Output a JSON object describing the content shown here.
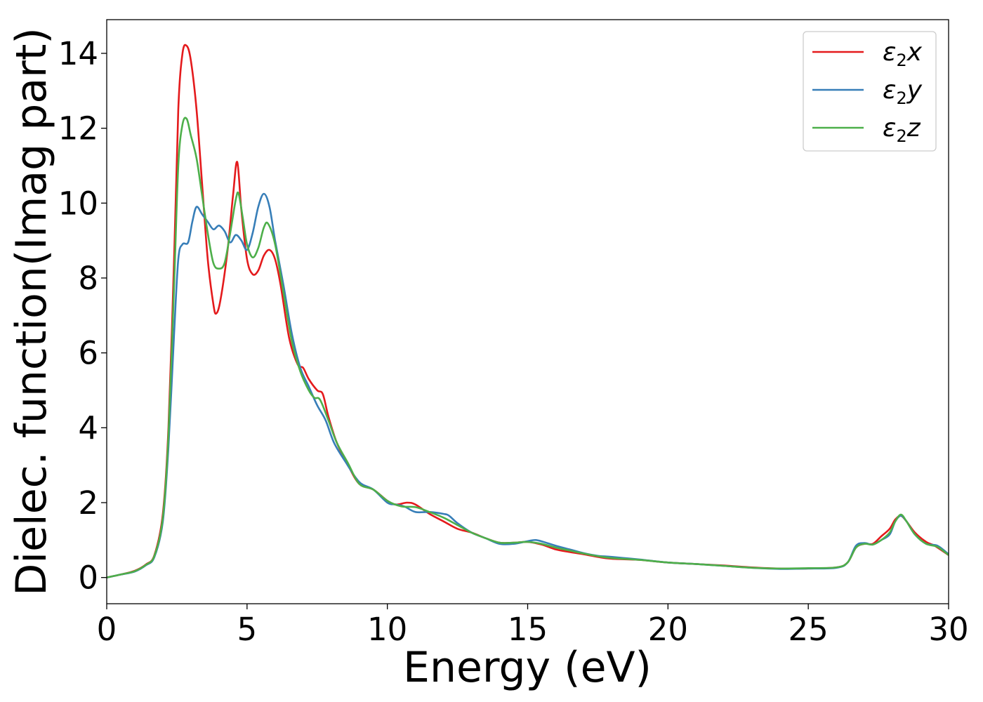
{
  "chart_data": {
    "type": "line",
    "title": "",
    "xlabel": "Energy (eV)",
    "ylabel": "Dielec. function(Imag part)",
    "xlim": [
      0,
      30
    ],
    "ylim": [
      -0.7,
      14.9
    ],
    "xticks": [
      0,
      5,
      10,
      15,
      20,
      25,
      30
    ],
    "yticks": [
      0,
      2,
      4,
      6,
      8,
      10,
      12,
      14
    ],
    "grid": false,
    "legend_position": "top-right",
    "series": [
      {
        "name": "ε2x",
        "color": "#e41a1c",
        "points": [
          [
            0,
            0
          ],
          [
            0.5,
            0.08
          ],
          [
            1.0,
            0.18
          ],
          [
            1.4,
            0.35
          ],
          [
            1.7,
            0.6
          ],
          [
            2.0,
            1.7
          ],
          [
            2.2,
            4.0
          ],
          [
            2.4,
            8.5
          ],
          [
            2.55,
            12.5
          ],
          [
            2.7,
            14.0
          ],
          [
            2.85,
            14.2
          ],
          [
            3.0,
            13.8
          ],
          [
            3.2,
            12.5
          ],
          [
            3.4,
            10.5
          ],
          [
            3.6,
            8.5
          ],
          [
            3.8,
            7.3
          ],
          [
            3.9,
            7.05
          ],
          [
            4.05,
            7.4
          ],
          [
            4.3,
            8.7
          ],
          [
            4.5,
            10.2
          ],
          [
            4.65,
            11.1
          ],
          [
            4.8,
            9.8
          ],
          [
            5.0,
            8.5
          ],
          [
            5.2,
            8.1
          ],
          [
            5.4,
            8.2
          ],
          [
            5.6,
            8.6
          ],
          [
            5.8,
            8.75
          ],
          [
            6.0,
            8.5
          ],
          [
            6.2,
            7.8
          ],
          [
            6.5,
            6.4
          ],
          [
            6.8,
            5.7
          ],
          [
            7.0,
            5.6
          ],
          [
            7.2,
            5.3
          ],
          [
            7.5,
            5.0
          ],
          [
            7.7,
            4.9
          ],
          [
            7.9,
            4.3
          ],
          [
            8.2,
            3.6
          ],
          [
            8.6,
            3.0
          ],
          [
            9.0,
            2.5
          ],
          [
            9.5,
            2.35
          ],
          [
            10.0,
            2.05
          ],
          [
            10.3,
            1.95
          ],
          [
            10.7,
            2.0
          ],
          [
            11.0,
            1.95
          ],
          [
            11.5,
            1.7
          ],
          [
            12.0,
            1.5
          ],
          [
            12.5,
            1.3
          ],
          [
            13.0,
            1.2
          ],
          [
            13.5,
            1.05
          ],
          [
            14.0,
            0.93
          ],
          [
            14.5,
            0.93
          ],
          [
            15.0,
            0.95
          ],
          [
            15.5,
            0.88
          ],
          [
            16.0,
            0.75
          ],
          [
            16.5,
            0.68
          ],
          [
            17.0,
            0.62
          ],
          [
            17.5,
            0.55
          ],
          [
            18.0,
            0.5
          ],
          [
            19.0,
            0.47
          ],
          [
            20.0,
            0.4
          ],
          [
            21.0,
            0.36
          ],
          [
            22.0,
            0.32
          ],
          [
            23.0,
            0.27
          ],
          [
            24.0,
            0.24
          ],
          [
            25.0,
            0.24
          ],
          [
            26.0,
            0.27
          ],
          [
            26.4,
            0.4
          ],
          [
            26.7,
            0.8
          ],
          [
            27.0,
            0.9
          ],
          [
            27.3,
            0.9
          ],
          [
            27.6,
            1.1
          ],
          [
            27.9,
            1.3
          ],
          [
            28.1,
            1.55
          ],
          [
            28.3,
            1.65
          ],
          [
            28.5,
            1.5
          ],
          [
            28.8,
            1.2
          ],
          [
            29.2,
            0.95
          ],
          [
            29.5,
            0.85
          ],
          [
            30.0,
            0.6
          ]
        ]
      },
      {
        "name": "ε2y",
        "color": "#377eb8",
        "points": [
          [
            0,
            0
          ],
          [
            0.5,
            0.08
          ],
          [
            1.0,
            0.16
          ],
          [
            1.4,
            0.33
          ],
          [
            1.7,
            0.55
          ],
          [
            2.0,
            1.5
          ],
          [
            2.2,
            3.5
          ],
          [
            2.4,
            6.5
          ],
          [
            2.55,
            8.5
          ],
          [
            2.7,
            8.9
          ],
          [
            2.9,
            8.95
          ],
          [
            3.05,
            9.5
          ],
          [
            3.2,
            9.9
          ],
          [
            3.4,
            9.7
          ],
          [
            3.6,
            9.5
          ],
          [
            3.8,
            9.3
          ],
          [
            4.0,
            9.4
          ],
          [
            4.2,
            9.25
          ],
          [
            4.4,
            8.95
          ],
          [
            4.6,
            9.15
          ],
          [
            4.8,
            9.0
          ],
          [
            5.0,
            8.75
          ],
          [
            5.2,
            9.2
          ],
          [
            5.4,
            9.9
          ],
          [
            5.6,
            10.25
          ],
          [
            5.8,
            9.9
          ],
          [
            6.0,
            9.0
          ],
          [
            6.3,
            7.8
          ],
          [
            6.6,
            6.5
          ],
          [
            6.9,
            5.6
          ],
          [
            7.2,
            5.1
          ],
          [
            7.5,
            4.6
          ],
          [
            7.8,
            4.2
          ],
          [
            8.1,
            3.6
          ],
          [
            8.5,
            3.1
          ],
          [
            9.0,
            2.55
          ],
          [
            9.5,
            2.35
          ],
          [
            10.0,
            2.0
          ],
          [
            10.3,
            1.95
          ],
          [
            10.6,
            1.9
          ],
          [
            11.0,
            1.75
          ],
          [
            11.5,
            1.75
          ],
          [
            12.0,
            1.7
          ],
          [
            12.2,
            1.65
          ],
          [
            12.5,
            1.45
          ],
          [
            13.0,
            1.2
          ],
          [
            13.5,
            1.05
          ],
          [
            14.0,
            0.9
          ],
          [
            14.5,
            0.9
          ],
          [
            15.0,
            0.97
          ],
          [
            15.3,
            1.0
          ],
          [
            15.7,
            0.92
          ],
          [
            16.0,
            0.85
          ],
          [
            16.5,
            0.75
          ],
          [
            17.0,
            0.65
          ],
          [
            17.5,
            0.58
          ],
          [
            18.0,
            0.55
          ],
          [
            19.0,
            0.48
          ],
          [
            20.0,
            0.4
          ],
          [
            21.0,
            0.36
          ],
          [
            22.0,
            0.31
          ],
          [
            23.0,
            0.26
          ],
          [
            24.0,
            0.23
          ],
          [
            25.0,
            0.24
          ],
          [
            26.0,
            0.26
          ],
          [
            26.4,
            0.4
          ],
          [
            26.7,
            0.85
          ],
          [
            27.0,
            0.92
          ],
          [
            27.3,
            0.88
          ],
          [
            27.6,
            1.0
          ],
          [
            27.9,
            1.15
          ],
          [
            28.1,
            1.5
          ],
          [
            28.3,
            1.65
          ],
          [
            28.5,
            1.5
          ],
          [
            28.8,
            1.15
          ],
          [
            29.2,
            0.9
          ],
          [
            29.6,
            0.85
          ],
          [
            30.0,
            0.62
          ]
        ]
      },
      {
        "name": "ε2z",
        "color": "#4daf4a",
        "points": [
          [
            0,
            0
          ],
          [
            0.5,
            0.08
          ],
          [
            1.0,
            0.17
          ],
          [
            1.4,
            0.34
          ],
          [
            1.7,
            0.58
          ],
          [
            2.0,
            1.6
          ],
          [
            2.2,
            3.8
          ],
          [
            2.4,
            7.8
          ],
          [
            2.55,
            11.0
          ],
          [
            2.7,
            12.1
          ],
          [
            2.85,
            12.25
          ],
          [
            3.0,
            11.8
          ],
          [
            3.2,
            11.2
          ],
          [
            3.4,
            10.2
          ],
          [
            3.6,
            9.2
          ],
          [
            3.8,
            8.4
          ],
          [
            4.0,
            8.25
          ],
          [
            4.2,
            8.4
          ],
          [
            4.4,
            9.2
          ],
          [
            4.6,
            10.1
          ],
          [
            4.7,
            10.25
          ],
          [
            4.85,
            9.6
          ],
          [
            5.0,
            8.9
          ],
          [
            5.2,
            8.55
          ],
          [
            5.4,
            8.8
          ],
          [
            5.6,
            9.35
          ],
          [
            5.75,
            9.45
          ],
          [
            6.0,
            8.9
          ],
          [
            6.3,
            7.6
          ],
          [
            6.6,
            6.3
          ],
          [
            6.9,
            5.5
          ],
          [
            7.2,
            5.0
          ],
          [
            7.4,
            4.8
          ],
          [
            7.6,
            4.75
          ],
          [
            7.9,
            4.2
          ],
          [
            8.2,
            3.6
          ],
          [
            8.6,
            3.05
          ],
          [
            9.0,
            2.5
          ],
          [
            9.5,
            2.35
          ],
          [
            10.0,
            2.05
          ],
          [
            10.5,
            1.9
          ],
          [
            11.0,
            1.88
          ],
          [
            11.5,
            1.75
          ],
          [
            12.0,
            1.6
          ],
          [
            12.5,
            1.4
          ],
          [
            13.0,
            1.2
          ],
          [
            13.5,
            1.05
          ],
          [
            14.0,
            0.93
          ],
          [
            14.5,
            0.93
          ],
          [
            15.0,
            0.95
          ],
          [
            15.5,
            0.9
          ],
          [
            16.0,
            0.8
          ],
          [
            16.5,
            0.72
          ],
          [
            17.0,
            0.64
          ],
          [
            17.5,
            0.57
          ],
          [
            18.0,
            0.52
          ],
          [
            19.0,
            0.47
          ],
          [
            20.0,
            0.4
          ],
          [
            21.0,
            0.36
          ],
          [
            22.0,
            0.31
          ],
          [
            23.0,
            0.26
          ],
          [
            24.0,
            0.24
          ],
          [
            25.0,
            0.25
          ],
          [
            26.0,
            0.27
          ],
          [
            26.4,
            0.4
          ],
          [
            26.7,
            0.8
          ],
          [
            27.0,
            0.9
          ],
          [
            27.3,
            0.88
          ],
          [
            27.6,
            1.0
          ],
          [
            27.9,
            1.2
          ],
          [
            28.1,
            1.5
          ],
          [
            28.3,
            1.68
          ],
          [
            28.5,
            1.5
          ],
          [
            28.8,
            1.15
          ],
          [
            29.2,
            0.9
          ],
          [
            29.6,
            0.82
          ],
          [
            30.0,
            0.6
          ]
        ]
      }
    ]
  }
}
